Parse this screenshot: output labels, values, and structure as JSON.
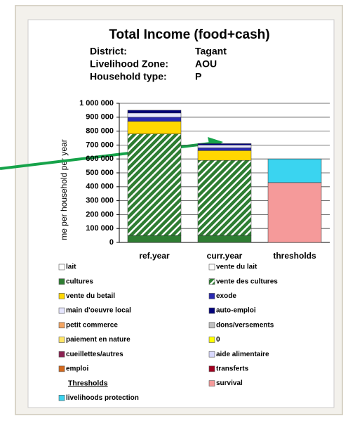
{
  "chart_data": {
    "type": "bar",
    "stacked": true,
    "title": "Total Income (food+cash)",
    "info": [
      {
        "label": "District:",
        "value": "Tagant"
      },
      {
        "label": "Livelihood Zone:",
        "value": "AOU"
      },
      {
        "label": "Household type:",
        "value": "P"
      }
    ],
    "ylabel": "me per household per year",
    "categories": [
      "ref.year",
      "curr.year",
      "thresholds"
    ],
    "ylim": [
      0,
      1000000
    ],
    "yticks": [
      0,
      {
        "value": 100000,
        "label": "100 000"
      },
      {
        "value": 200000,
        "label": "200 000"
      },
      {
        "value": 300000,
        "label": "300 000"
      },
      {
        "value": 400000,
        "label": "400 000"
      },
      {
        "value": 500000,
        "label": "500 000"
      },
      {
        "value": 600000,
        "label": "600 000"
      },
      {
        "value": 700000,
        "label": "700 000"
      },
      {
        "value": 800000,
        "label": "800 000"
      },
      {
        "value": 900000,
        "label": "900 000"
      },
      {
        "value": 1000000,
        "label": "1 000 000"
      }
    ],
    "grid": true,
    "legend_header": "Thresholds",
    "series": [
      {
        "name": "lait",
        "color": "#ffffff",
        "values": [
          null,
          null,
          null
        ]
      },
      {
        "name": "vente du lait",
        "color": "#ffffff",
        "values": [
          null,
          null,
          null
        ]
      },
      {
        "name": "cultures",
        "color": "#2e7d32",
        "values": [
          50000,
          50000,
          null
        ]
      },
      {
        "name": "vente des cultures",
        "color": "#2e7d32",
        "pattern": "hatch",
        "values": [
          730000,
          540000,
          null
        ]
      },
      {
        "name": "vente du betail",
        "color": "#ffd700",
        "values": [
          90000,
          70000,
          null
        ]
      },
      {
        "name": "exode",
        "color": "#2a2ab0",
        "values": [
          30000,
          20000,
          null
        ]
      },
      {
        "name": "main d'oeuvre local",
        "color": "#e6e6ff",
        "values": [
          30000,
          20000,
          null
        ]
      },
      {
        "name": "auto-emploi",
        "color": "#00007a",
        "values": [
          20000,
          10000,
          null
        ]
      },
      {
        "name": "petit commerce",
        "color": "#f4a460",
        "values": [
          null,
          null,
          null
        ]
      },
      {
        "name": "dons/versements",
        "color": "#c0c0c0",
        "values": [
          null,
          null,
          null
        ]
      },
      {
        "name": "paiement en nature",
        "color": "#ffe566",
        "values": [
          null,
          null,
          null
        ]
      },
      {
        "name": "0",
        "color": "#ffff00",
        "values": [
          null,
          null,
          null
        ]
      },
      {
        "name": "cueillettes/autres",
        "color": "#8b2252",
        "values": [
          null,
          null,
          null
        ]
      },
      {
        "name": "aide alimentaire",
        "color": "#d8d8ff",
        "values": [
          null,
          null,
          null
        ]
      },
      {
        "name": "emploi",
        "color": "#d2691e",
        "values": [
          null,
          null,
          null
        ]
      },
      {
        "name": "transferts",
        "color": "#a00020",
        "values": [
          null,
          null,
          null
        ]
      },
      {
        "name": "survival",
        "color": "#f59a9a",
        "values": [
          null,
          null,
          430000
        ]
      },
      {
        "name": "livelihoods protection",
        "color": "#3ad4f0",
        "values": [
          null,
          null,
          170000
        ]
      }
    ]
  }
}
